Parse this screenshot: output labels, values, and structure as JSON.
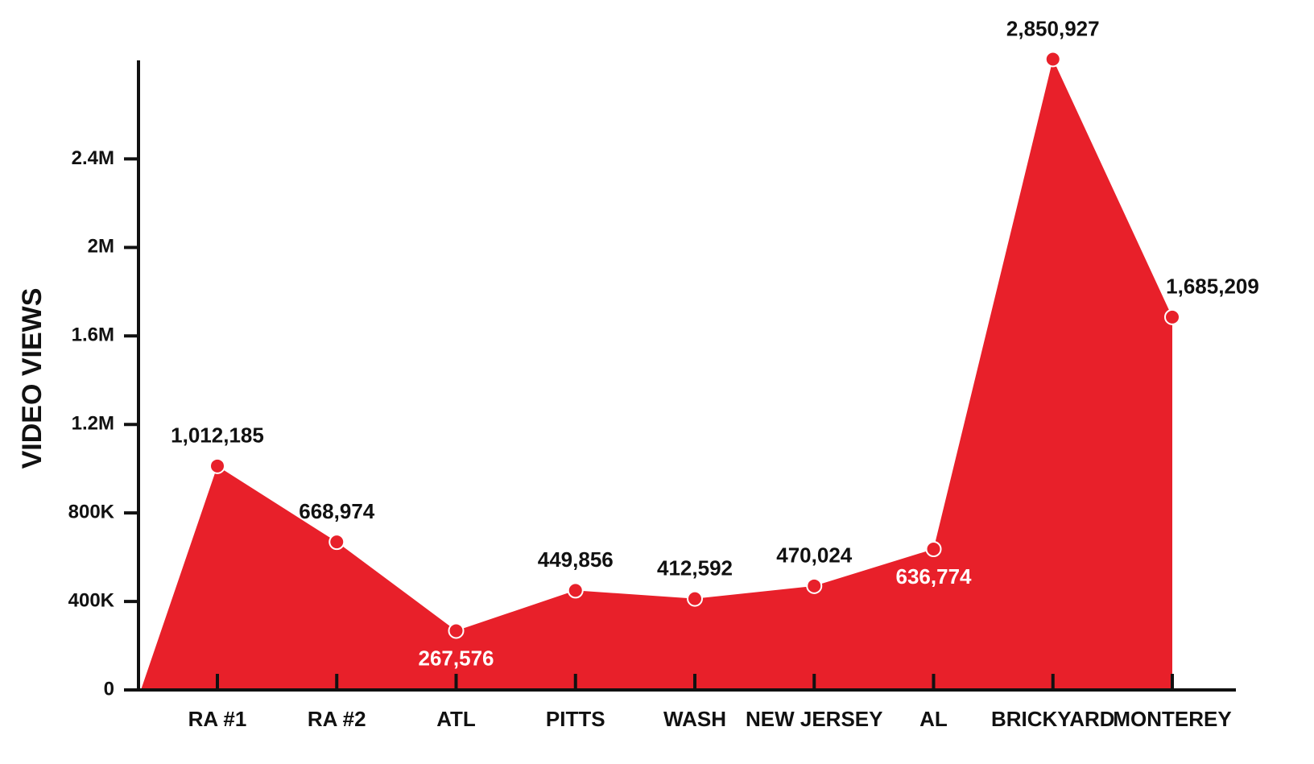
{
  "chart_data": {
    "type": "area",
    "y_label": "VIDEO VIEWS",
    "categories": [
      "RA #1",
      "RA #2",
      "ATL",
      "PITTS",
      "WASH",
      "NEW JERSEY",
      "AL",
      "BRICKYARD",
      "MONTEREY"
    ],
    "values": [
      1012185,
      668974,
      267576,
      449856,
      412592,
      470024,
      636774,
      2850927,
      1685209
    ],
    "value_labels": [
      "1,012,185",
      "668,974",
      "267,576",
      "449,856",
      "412,592",
      "470,024",
      "636,774",
      "2,850,927",
      "1,685,209"
    ],
    "color": "#e8202a",
    "ylim": [
      0,
      2900000
    ],
    "yticks": [
      0,
      {
        "value": 400000,
        "label": "400K"
      },
      {
        "value": 800000,
        "label": "800K"
      },
      {
        "value": 1200000,
        "label": "1.2M"
      },
      {
        "value": 1600000,
        "label": "1.6M"
      },
      {
        "value": 2000000,
        "label": "2M"
      },
      {
        "value": 2400000,
        "label": "2.4M"
      }
    ]
  }
}
